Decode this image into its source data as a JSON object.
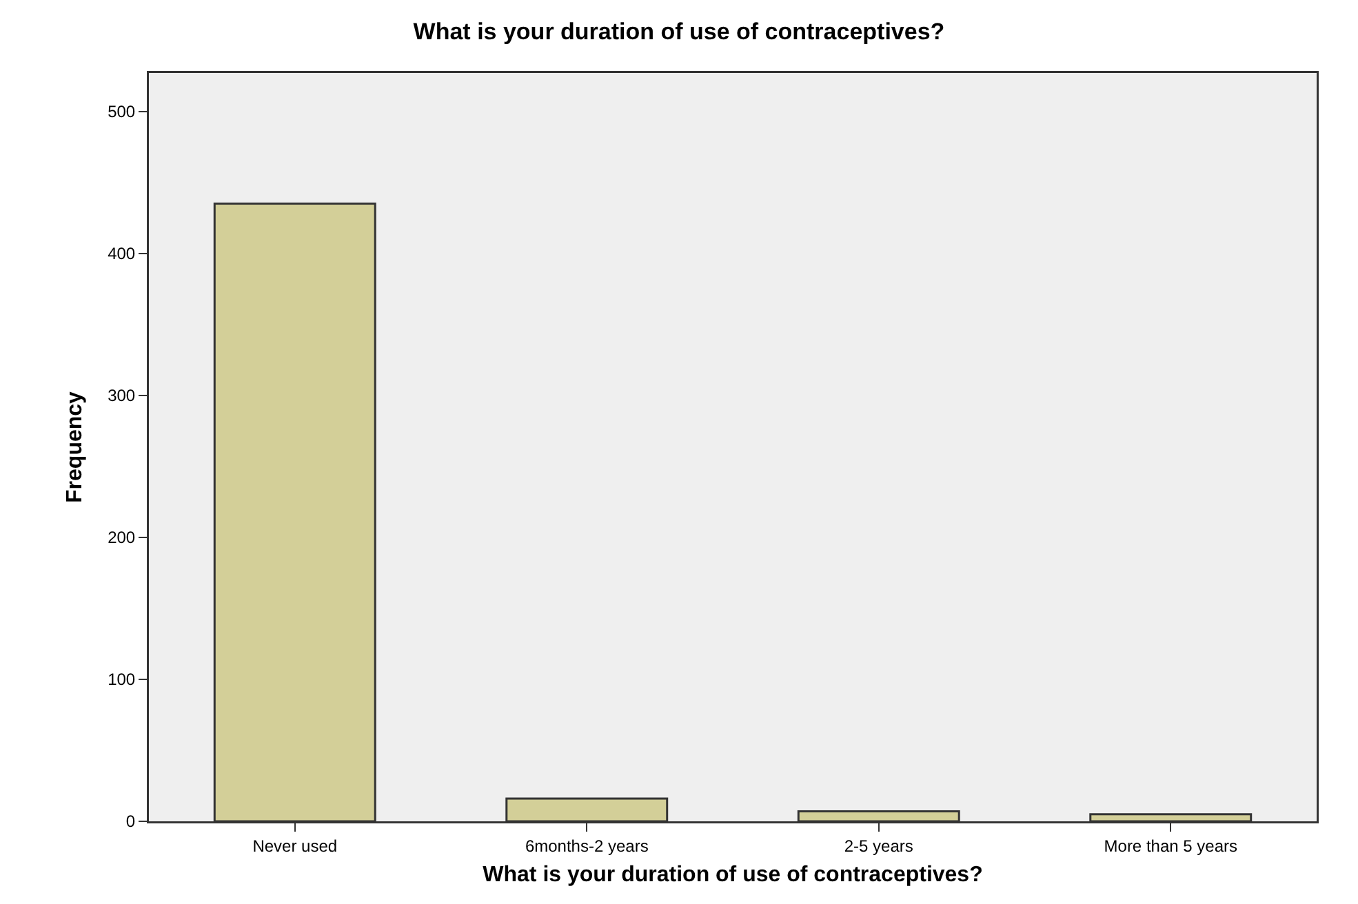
{
  "chart_data": {
    "type": "bar",
    "title": "What is your duration of use of contraceptives?",
    "xlabel": "What is your duration of use of contraceptives?",
    "ylabel": "Frequency",
    "categories": [
      "Never used",
      "6months-2 years",
      "2-5 years",
      "More than 5 years"
    ],
    "values": [
      435,
      16,
      7,
      5
    ],
    "color": "#d3cf98",
    "ylim": [
      0,
      527
    ],
    "yticks": [
      0,
      100,
      200,
      300,
      400,
      500
    ],
    "grid": false
  }
}
